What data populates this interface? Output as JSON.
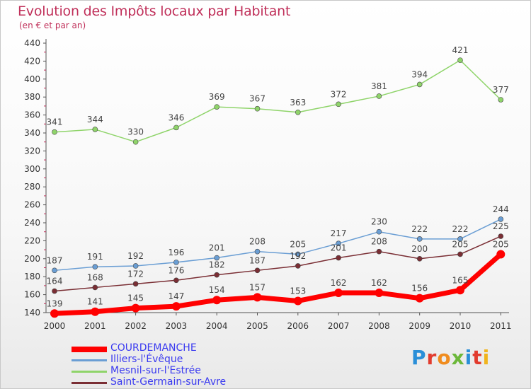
{
  "title": "Evolution des Impôts locaux par Habitant",
  "subtitle": "(en € et par an)",
  "logo": {
    "text": "Proxiti",
    "colors": [
      "#2a8fd8",
      "#e23b2e",
      "#f08c1e",
      "#6cb83a",
      "#2a8fd8",
      "#e23b2e",
      "#f0b41e"
    ]
  },
  "chart_data": {
    "type": "line",
    "x": [
      "2000",
      "2001",
      "2002",
      "2003",
      "2004",
      "2005",
      "2006",
      "2007",
      "2008",
      "2009",
      "2010",
      "2011"
    ],
    "ylim": [
      140,
      440
    ],
    "yticks": [
      140,
      160,
      180,
      200,
      220,
      240,
      260,
      280,
      300,
      320,
      340,
      360,
      380,
      400,
      420,
      440
    ],
    "grid": false,
    "legend_position": "bottom-left",
    "series": [
      {
        "name": "COURDEMANCHE",
        "color": "#ff0000",
        "values": [
          139,
          141,
          145,
          147,
          154,
          157,
          153,
          162,
          162,
          156,
          165,
          205
        ]
      },
      {
        "name": "Illiers-l'Évêque",
        "color": "#6a9ed4",
        "values": [
          187,
          191,
          192,
          196,
          201,
          208,
          205,
          217,
          230,
          222,
          222,
          244
        ]
      },
      {
        "name": "Mesnil-sur-l'Estrée",
        "color": "#8fd46a",
        "values": [
          341,
          344,
          330,
          346,
          369,
          367,
          363,
          372,
          381,
          394,
          421,
          377
        ]
      },
      {
        "name": "Saint-Germain-sur-Avre",
        "color": "#7a2e34",
        "values": [
          164,
          168,
          172,
          176,
          182,
          187,
          192,
          201,
          208,
          200,
          205,
          225
        ]
      }
    ]
  }
}
